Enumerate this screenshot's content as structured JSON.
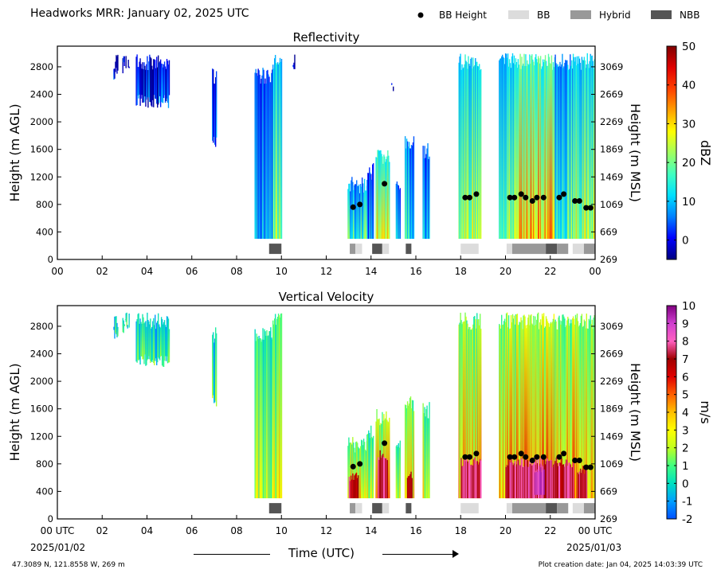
{
  "header": {
    "title": "Headworks MRR:  January 02, 2025 UTC",
    "legend": [
      {
        "label": "BB Height",
        "kind": "dot",
        "color": "#000000"
      },
      {
        "label": "BB",
        "kind": "box",
        "color": "#dcdcdc"
      },
      {
        "label": "Hybrid",
        "kind": "box",
        "color": "#999999"
      },
      {
        "label": "NBB",
        "kind": "box",
        "color": "#555555"
      }
    ]
  },
  "footer": {
    "location": "47.3089 N, 121.8558 W, 269 m",
    "creation": "Plot creation date: Jan 04, 2025 14:03:39 UTC",
    "start_date": "2025/01/02",
    "end_date": "2025/01/03",
    "xlabel": "Time (UTC)"
  },
  "chart_data": [
    {
      "type": "heatmap",
      "title": "Reflectivity",
      "ylabel": "Height (m AGL)",
      "y2label": "Height (m MSL)",
      "colorbar_label": "dBZ",
      "colorbar_ticks": [
        "50",
        "40",
        "30",
        "20",
        "10",
        "0"
      ],
      "colorbar_range": [
        -5,
        50
      ],
      "colorscale": [
        "#000080",
        "#0000ff",
        "#0080ff",
        "#00e0ff",
        "#40ffc0",
        "#a0ff60",
        "#ffff00",
        "#ffa000",
        "#ff4000",
        "#e00000",
        "#800000"
      ],
      "x_ticks": [
        "00",
        "02",
        "04",
        "06",
        "08",
        "10",
        "12",
        "14",
        "16",
        "18",
        "20",
        "22",
        "00"
      ],
      "ylim": [
        0,
        3100
      ],
      "y_ticks": [
        0,
        400,
        800,
        1200,
        1600,
        2000,
        2400,
        2800
      ],
      "y2_ticks": [
        269,
        669,
        1069,
        1469,
        1869,
        2269,
        2669,
        3069
      ],
      "bb_height": [
        [
          13.2,
          760
        ],
        [
          13.5,
          800
        ],
        [
          14.6,
          1100
        ],
        [
          18.2,
          900
        ],
        [
          18.4,
          900
        ],
        [
          18.7,
          950
        ],
        [
          20.2,
          900
        ],
        [
          20.4,
          900
        ],
        [
          20.7,
          950
        ],
        [
          20.9,
          900
        ],
        [
          21.2,
          850
        ],
        [
          21.4,
          900
        ],
        [
          21.7,
          900
        ],
        [
          22.4,
          900
        ],
        [
          22.6,
          950
        ],
        [
          23.1,
          850
        ],
        [
          23.3,
          850
        ],
        [
          23.6,
          750
        ],
        [
          23.8,
          750
        ]
      ],
      "bb_class": [
        [
          9.45,
          10.0,
          "NBB"
        ],
        [
          13.05,
          13.3,
          "Hybrid"
        ],
        [
          13.3,
          13.6,
          "BB"
        ],
        [
          14.05,
          14.5,
          "NBB"
        ],
        [
          14.5,
          14.8,
          "BB"
        ],
        [
          15.55,
          15.8,
          "NBB"
        ],
        [
          18.0,
          18.8,
          "BB"
        ],
        [
          20.05,
          20.3,
          "BB"
        ],
        [
          20.3,
          21.8,
          "Hybrid"
        ],
        [
          21.8,
          22.3,
          "NBB"
        ],
        [
          22.3,
          22.8,
          "Hybrid"
        ],
        [
          23.0,
          23.5,
          "BB"
        ],
        [
          23.5,
          24.0,
          "Hybrid"
        ]
      ],
      "echo_columns": [
        [
          2.5,
          2.7,
          2600,
          3000,
          0.08
        ],
        [
          2.9,
          3.2,
          2700,
          3000,
          0.1
        ],
        [
          3.5,
          5.0,
          2200,
          3000,
          0.12
        ],
        [
          6.9,
          7.1,
          1600,
          2800,
          0.18
        ],
        [
          8.8,
          9.6,
          300,
          2800,
          0.25
        ],
        [
          9.6,
          10.0,
          300,
          3000,
          0.45
        ],
        [
          10.5,
          10.6,
          2700,
          3000,
          0.1
        ],
        [
          12.95,
          13.8,
          300,
          1200,
          0.35
        ],
        [
          13.8,
          14.1,
          300,
          1400,
          0.25
        ],
        [
          14.2,
          14.8,
          300,
          1600,
          0.55
        ],
        [
          14.9,
          15.0,
          2400,
          2600,
          0.1
        ],
        [
          15.1,
          15.3,
          300,
          1200,
          0.2
        ],
        [
          15.5,
          15.9,
          300,
          1800,
          0.3
        ],
        [
          16.3,
          16.6,
          300,
          1700,
          0.25
        ],
        [
          16.9,
          17.0,
          2800,
          3000,
          0.1
        ],
        [
          17.9,
          18.9,
          300,
          3000,
          0.45
        ],
        [
          19.7,
          20.6,
          300,
          3000,
          0.45
        ],
        [
          20.6,
          22.2,
          300,
          3000,
          0.6
        ],
        [
          22.2,
          23.0,
          300,
          3000,
          0.35
        ],
        [
          23.0,
          24.0,
          300,
          3000,
          0.45
        ]
      ]
    },
    {
      "type": "heatmap",
      "title": "Vertical Velocity",
      "ylabel": "Height (m AGL)",
      "y2label": "Height (m MSL)",
      "colorbar_label": "m/s",
      "colorbar_ticks": [
        "10",
        "9",
        "8",
        "7",
        "6",
        "5",
        "4",
        "3",
        "2",
        "1",
        "0",
        "-1",
        "-2"
      ],
      "colorbar_range": [
        -2,
        10
      ],
      "colorscale": [
        "#0050ff",
        "#00a0ff",
        "#00e0c0",
        "#40ff80",
        "#c0ff20",
        "#ffff00",
        "#ffc000",
        "#ff6000",
        "#e00000",
        "#a00000",
        "#ff60c0",
        "#d040d0",
        "#800080"
      ],
      "x_ticks": [
        "00 UTC",
        "02",
        "04",
        "06",
        "08",
        "10",
        "12",
        "14",
        "16",
        "18",
        "20",
        "22",
        "00 UTC"
      ],
      "ylim": [
        0,
        3100
      ],
      "y_ticks": [
        0,
        400,
        800,
        1200,
        1600,
        2000,
        2400,
        2800
      ],
      "y2_ticks": [
        269,
        669,
        1069,
        1469,
        1869,
        2269,
        2669,
        3069
      ],
      "bb_height": [
        [
          13.2,
          760
        ],
        [
          13.5,
          800
        ],
        [
          14.6,
          1100
        ],
        [
          18.2,
          900
        ],
        [
          18.4,
          900
        ],
        [
          18.7,
          950
        ],
        [
          20.2,
          900
        ],
        [
          20.4,
          900
        ],
        [
          20.7,
          950
        ],
        [
          20.9,
          900
        ],
        [
          21.2,
          850
        ],
        [
          21.4,
          900
        ],
        [
          21.7,
          900
        ],
        [
          22.4,
          900
        ],
        [
          22.6,
          950
        ],
        [
          23.1,
          850
        ],
        [
          23.3,
          850
        ],
        [
          23.6,
          750
        ],
        [
          23.8,
          750
        ]
      ],
      "bb_class": [
        [
          9.45,
          10.0,
          "NBB"
        ],
        [
          13.05,
          13.3,
          "Hybrid"
        ],
        [
          13.3,
          13.6,
          "BB"
        ],
        [
          14.05,
          14.5,
          "NBB"
        ],
        [
          14.5,
          14.8,
          "BB"
        ],
        [
          15.55,
          15.8,
          "NBB"
        ],
        [
          18.0,
          18.8,
          "BB"
        ],
        [
          20.05,
          20.3,
          "BB"
        ],
        [
          20.3,
          21.8,
          "Hybrid"
        ],
        [
          21.8,
          22.3,
          "NBB"
        ],
        [
          22.3,
          22.8,
          "Hybrid"
        ],
        [
          23.0,
          23.5,
          "BB"
        ],
        [
          23.5,
          24.0,
          "Hybrid"
        ]
      ],
      "echo_columns": [
        [
          2.5,
          2.7,
          2600,
          3000,
          0.2
        ],
        [
          2.9,
          3.2,
          2700,
          3000,
          0.2
        ],
        [
          3.5,
          5.0,
          2200,
          3000,
          0.22
        ],
        [
          6.9,
          7.1,
          1600,
          2800,
          0.22
        ],
        [
          8.8,
          9.6,
          300,
          2800,
          0.3
        ],
        [
          9.6,
          10.0,
          300,
          3000,
          0.35
        ],
        [
          12.95,
          13.8,
          300,
          1200,
          0.4
        ],
        [
          13.8,
          14.1,
          300,
          1400,
          0.35
        ],
        [
          14.2,
          14.8,
          300,
          1600,
          0.45
        ],
        [
          15.1,
          15.3,
          300,
          1200,
          0.35
        ],
        [
          15.5,
          15.9,
          300,
          1800,
          0.4
        ],
        [
          16.3,
          16.6,
          300,
          1700,
          0.35
        ],
        [
          17.9,
          18.9,
          300,
          3000,
          0.42
        ],
        [
          19.7,
          20.6,
          300,
          3000,
          0.45
        ],
        [
          20.6,
          22.2,
          300,
          3000,
          0.5
        ],
        [
          22.2,
          23.0,
          300,
          3000,
          0.42
        ],
        [
          23.0,
          24.0,
          300,
          3000,
          0.45
        ]
      ],
      "fall_cores": [
        [
          13.0,
          13.4,
          300,
          700,
          0.75
        ],
        [
          14.3,
          14.7,
          300,
          1000,
          0.78
        ],
        [
          15.6,
          15.8,
          300,
          700,
          0.75
        ],
        [
          18.0,
          18.9,
          300,
          900,
          0.78
        ],
        [
          20.0,
          22.4,
          300,
          900,
          0.8
        ],
        [
          21.3,
          21.7,
          350,
          800,
          0.92
        ],
        [
          22.4,
          23.0,
          300,
          900,
          0.78
        ],
        [
          23.2,
          23.6,
          300,
          800,
          0.75
        ]
      ]
    }
  ]
}
